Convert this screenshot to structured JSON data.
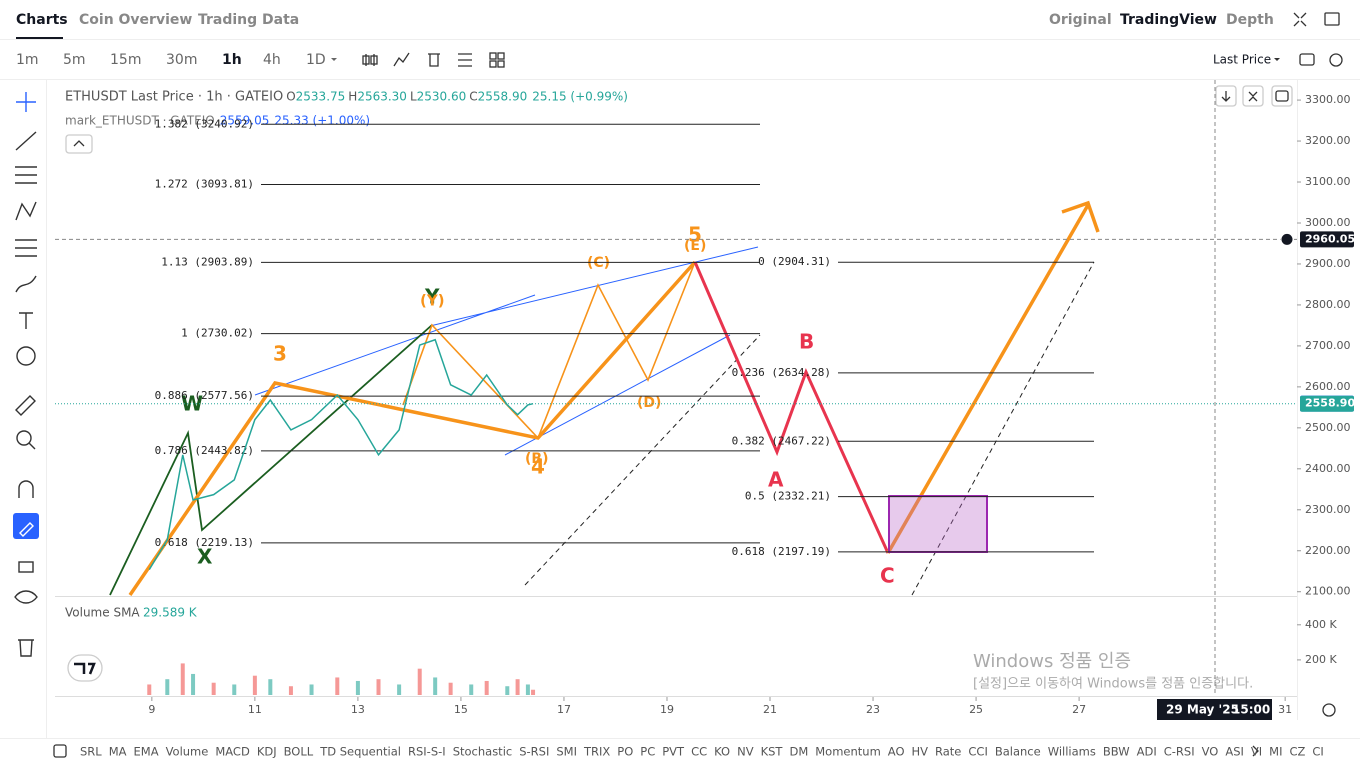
{
  "header": {
    "tabs": [
      "Charts",
      "Coin Overview",
      "Trading Data"
    ],
    "views": [
      "Original",
      "TradingView",
      "Depth"
    ]
  },
  "toolbar": {
    "intervals": [
      "1m",
      "5m",
      "15m",
      "30m",
      "1h",
      "4h",
      "1D"
    ],
    "price_type": "Last Price"
  },
  "legend": {
    "symbol": "ETHUSDT Last Price · 1h · GATEIO",
    "ohlc": [
      {
        "key": "O",
        "value": "2533.75"
      },
      {
        "key": "H",
        "value": "2563.30"
      },
      {
        "key": "L",
        "value": "2530.60"
      },
      {
        "key": "C",
        "value": "2558.90"
      }
    ],
    "change": "25.15 (+0.99%)",
    "mark_symbol": "mark_ETHUSDT · GATEIO",
    "mark_value": "2559.05",
    "mark_change": "25.33 (+1.00%)"
  },
  "chart_data": {
    "type": "line",
    "color": "#26a69a",
    "x": [
      8.95,
      9.3,
      9.6,
      9.8,
      10.2,
      10.6,
      11.0,
      11.3,
      11.7,
      12.1,
      12.6,
      13.0,
      13.4,
      13.8,
      14.2,
      14.5,
      14.8,
      15.2,
      15.5,
      15.9,
      16.1,
      16.3,
      16.4
    ],
    "values": [
      2154,
      2227,
      2434,
      2324,
      2337,
      2373,
      2520,
      2568,
      2495,
      2520,
      2580,
      2520,
      2434,
      2495,
      2702,
      2715,
      2605,
      2580,
      2629,
      2556,
      2532,
      2556,
      2559
    ],
    "xlim": [
      7.12,
      31.23
    ],
    "xticks": [
      9,
      11,
      13,
      15,
      17,
      19,
      21,
      23,
      25,
      27,
      31
    ],
    "ylim": [
      2092,
      3349
    ],
    "yticks": [
      {
        "value": 2100,
        "label": "2100.00"
      },
      {
        "value": 2200,
        "label": "2200.00"
      },
      {
        "value": 2300,
        "label": "2300.00"
      },
      {
        "value": 2400,
        "label": "2400.00"
      },
      {
        "value": 2500,
        "label": "2500.00"
      },
      {
        "value": 2600,
        "label": "2600.00"
      },
      {
        "value": 2700,
        "label": "2700.00"
      },
      {
        "value": 2800,
        "label": "2800.00"
      },
      {
        "value": 2900,
        "label": "2900.00"
      },
      {
        "value": 3000,
        "label": "3000.00"
      },
      {
        "value": 3100,
        "label": "3100.00"
      },
      {
        "value": 3200,
        "label": "3200.00"
      },
      {
        "value": 3300,
        "label": "3300.00"
      }
    ],
    "price_tags": [
      {
        "value": 2960.05,
        "color": "#131722"
      },
      {
        "value": 2559.05,
        "color": "#2962ff"
      },
      {
        "value": 2558.9,
        "label": "2558.90",
        "color": "#26a69a"
      }
    ],
    "fib_left": [
      {
        "label": "1.382 (3240.92)",
        "value": 3240.92
      },
      {
        "label": "1.272 (3093.81)",
        "value": 3093.81
      },
      {
        "label": "1.13 (2903.89)",
        "value": 2903.89
      },
      {
        "label": "1 (2730.02)",
        "value": 2730.02
      },
      {
        "label": "0.886 (2577.56)",
        "value": 2577.56
      },
      {
        "label": "0.786 (2443.82)",
        "value": 2443.82
      },
      {
        "label": "0.618 (2219.13)",
        "value": 2219.13
      }
    ],
    "fib_right": [
      {
        "label": "0 (2904.31)",
        "value": 2904.31
      },
      {
        "label": "0.236 (2634.28)",
        "value": 2634.28
      },
      {
        "label": "0.382 (2467.22)",
        "value": 2467.22
      },
      {
        "label": "0.5 (2332.21)",
        "value": 2332.21
      },
      {
        "label": "0.618 (2197.19)",
        "value": 2197.19
      }
    ],
    "volume": {
      "title": "Volume SMA",
      "sma": "29.589 K",
      "color": "#ef5350",
      "values": [
        60000,
        90000,
        180000,
        120000,
        70000,
        60000,
        110000,
        90000,
        50000,
        60000,
        100000,
        80000,
        90000,
        60000,
        150000,
        100000,
        70000,
        60000,
        80000,
        50000,
        90000,
        60000,
        30000
      ],
      "ylim": [
        0,
        530000
      ],
      "yticks": [
        {
          "value": 200000,
          "label": "200 K"
        },
        {
          "value": 400000,
          "label": "400 K"
        }
      ]
    },
    "crosshair": {
      "date": "29 May '25",
      "time": "15:00"
    }
  },
  "waves": {
    "w": "W",
    "x": "X",
    "y": "Y",
    "three": "3",
    "y_paren": "(Y)",
    "five": "5",
    "e": "(E)",
    "c_paren": "(C)",
    "d": "(D)",
    "b_paren": "(B)",
    "four": "4",
    "a": "A",
    "b": "B",
    "c": "C"
  },
  "indicators": [
    "SRL",
    "MA",
    "EMA",
    "Volume",
    "MACD",
    "KDJ",
    "BOLL",
    "TD Sequential",
    "RSI-S-I",
    "Stochastic",
    "S-RSI",
    "SMI",
    "TRIX",
    "PO",
    "PC",
    "PVT",
    "CC",
    "KO",
    "NV",
    "KST",
    "DM",
    "Momentum",
    "AO",
    "HV",
    "Rate",
    "CCI",
    "Balance",
    "Williams",
    "BBW",
    "ADI",
    "C-RSI",
    "VO",
    "ASI",
    "VI",
    "MI",
    "CZ",
    "CI"
  ],
  "watermark": {
    "title": "Windows 정품 인증",
    "text": "[설정]으로 이동하여 Windows를 정품 인증합니다."
  }
}
